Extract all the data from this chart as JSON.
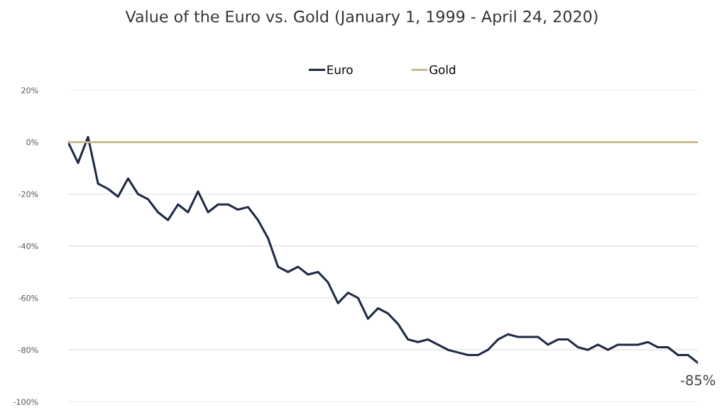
{
  "chart_data": {
    "type": "line",
    "title": "Value of the Euro vs. Gold (January 1, 1999 - April 24, 2020)",
    "categories": [
      null,
      null,
      null,
      null,
      null,
      null,
      null,
      null,
      null,
      null,
      null,
      null,
      null,
      null,
      null,
      null,
      null,
      null,
      null,
      null,
      null,
      null,
      null,
      null,
      null,
      null,
      null,
      null,
      null,
      null,
      null,
      null,
      null,
      null,
      null,
      null,
      null,
      null,
      null,
      null,
      null,
      null,
      null,
      null,
      null,
      null,
      null,
      null,
      null,
      null,
      null,
      null,
      null,
      null,
      null,
      null,
      null,
      null,
      null,
      null,
      null,
      null,
      null,
      null
    ],
    "series": [
      {
        "name": "Euro",
        "color": "#1f2a44",
        "values": [
          0,
          -8,
          2,
          -16,
          -18,
          -21,
          -14,
          -20,
          -22,
          -27,
          -30,
          -24,
          -27,
          -19,
          -27,
          -24,
          -24,
          -26,
          -25,
          -30,
          -37,
          -48,
          -50,
          -48,
          -51,
          -50,
          -54,
          -62,
          -58,
          -60,
          -68,
          -64,
          -66,
          -70,
          -76,
          -77,
          -76,
          -78,
          -80,
          -81,
          -82,
          -82,
          -80,
          -76,
          -74,
          -75,
          -75,
          -75,
          -78,
          -76,
          -76,
          -79,
          -80,
          -78,
          -80,
          -78,
          -78,
          -78,
          -77,
          -79,
          -79,
          -82,
          -82,
          -85
        ]
      },
      {
        "name": "Gold",
        "color": "#c8b68a",
        "values": [
          0,
          0,
          0,
          0,
          0,
          0,
          0,
          0,
          0,
          0,
          0,
          0,
          0,
          0,
          0,
          0,
          0,
          0,
          0,
          0,
          0,
          0,
          0,
          0,
          0,
          0,
          0,
          0,
          0,
          0,
          0,
          0,
          0,
          0,
          0,
          0,
          0,
          0,
          0,
          0,
          0,
          0,
          0,
          0,
          0,
          0,
          0,
          0,
          0,
          0,
          0,
          0,
          0,
          0,
          0,
          0,
          0,
          0,
          0,
          0,
          0,
          0,
          0,
          0
        ]
      }
    ],
    "ylim": [
      -100,
      20
    ],
    "yticks": [
      {
        "value": -100,
        "label": "-100%"
      },
      {
        "value": -80,
        "label": "-80%"
      },
      {
        "value": -60,
        "label": "-60%"
      },
      {
        "value": -40,
        "label": "-40%"
      },
      {
        "value": -20,
        "label": "-20%"
      },
      {
        "value": 0,
        "label": "0%"
      },
      {
        "value": 20,
        "label": "20%"
      }
    ],
    "grid": "y",
    "legend": "top",
    "tick_labels": "y",
    "marker": "none",
    "line_style": "solid",
    "annotations": [
      {
        "text": "-85%",
        "y": -85
      }
    ]
  }
}
